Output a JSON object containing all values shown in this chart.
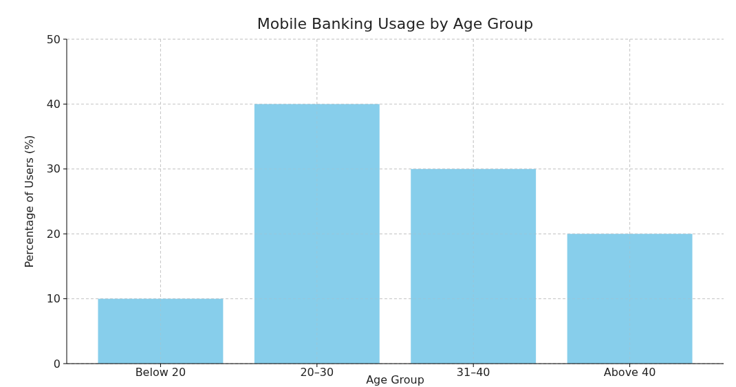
{
  "chart_data": {
    "type": "bar",
    "title": "Mobile Banking Usage by Age Group",
    "xlabel": "Age Group",
    "ylabel": "Percentage of Users (%)",
    "categories": [
      "Below 20",
      "20–30",
      "31–40",
      "Above 40"
    ],
    "values": [
      10,
      40,
      30,
      20
    ],
    "color": "#87ceeb",
    "ylim": [
      0,
      50
    ],
    "yticks": [
      0,
      10,
      20,
      30,
      40,
      50
    ],
    "grid": true
  }
}
